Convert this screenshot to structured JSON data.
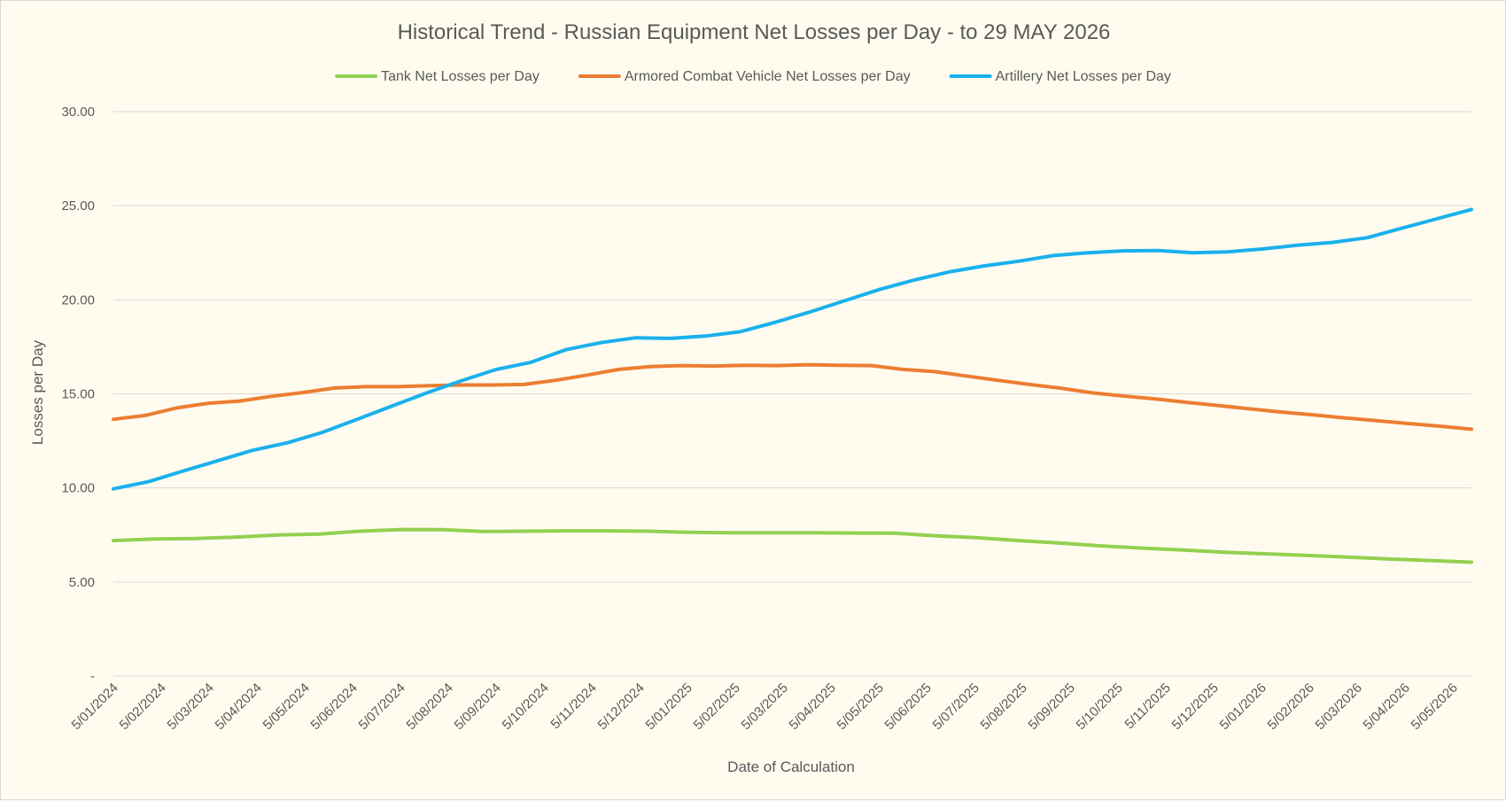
{
  "chart_data": {
    "type": "line",
    "title": "Historical Trend - Russian Equipment Net Losses per Day - to 29 MAY 2026",
    "xlabel": "Date of Calculation",
    "ylabel": "Losses per Day",
    "ylim": [
      0,
      30
    ],
    "y_ticks": [
      "-",
      "5.00",
      "10.00",
      "15.00",
      "20.00",
      "25.00",
      "30.00"
    ],
    "grid": true,
    "legend_position": "top",
    "x_tick_labels": [
      "5/01/2024",
      "5/02/2024",
      "5/03/2024",
      "5/04/2024",
      "5/05/2024",
      "5/06/2024",
      "5/07/2024",
      "5/08/2024",
      "5/09/2024",
      "5/10/2024",
      "5/11/2024",
      "5/12/2024",
      "5/01/2025",
      "5/02/2025",
      "5/03/2025",
      "5/04/2025",
      "5/05/2025",
      "5/06/2025",
      "5/07/2025",
      "5/08/2025",
      "5/09/2025",
      "5/10/2025",
      "5/11/2025",
      "5/12/2025",
      "5/01/2026",
      "5/02/2026",
      "5/03/2026",
      "5/04/2026",
      "5/05/2026"
    ],
    "x_end": "29/05/2026",
    "series": [
      {
        "name": "Tank Net Losses per Day",
        "color": "#92d050",
        "values": [
          7.2,
          7.29,
          7.31,
          7.39,
          7.5,
          7.55,
          7.7,
          7.79,
          7.78,
          7.68,
          7.7,
          7.72,
          7.72,
          7.7,
          7.64,
          7.62,
          7.62,
          7.62,
          7.6,
          7.59,
          7.45,
          7.35,
          7.2,
          7.07,
          6.92,
          6.8,
          6.7,
          6.58,
          6.5,
          6.41,
          6.32,
          6.22,
          6.14,
          6.05
        ]
      },
      {
        "name": "Armored Combat Vehicle Net Losses per Day",
        "color": "#ed7d31",
        "values": [
          13.65,
          13.85,
          14.25,
          14.5,
          14.62,
          14.87,
          15.07,
          15.31,
          15.38,
          15.38,
          15.44,
          15.47,
          15.47,
          15.5,
          15.72,
          16.0,
          16.3,
          16.45,
          16.5,
          16.48,
          16.52,
          16.5,
          16.55,
          16.52,
          16.5,
          16.3,
          16.18,
          15.95,
          15.72,
          15.5,
          15.3,
          15.05,
          14.88,
          14.73,
          14.55,
          14.38,
          14.2,
          14.03,
          13.88,
          13.72,
          13.58,
          13.42,
          13.28,
          13.12
        ]
      },
      {
        "name": "Artillery Net Losses per Day",
        "color": "#1ab1ec",
        "values": [
          9.95,
          10.33,
          10.9,
          11.45,
          12.0,
          12.4,
          12.95,
          13.65,
          14.35,
          15.05,
          15.7,
          16.3,
          16.68,
          17.35,
          17.72,
          17.98,
          17.95,
          18.07,
          18.3,
          18.8,
          19.35,
          19.95,
          20.55,
          21.05,
          21.48,
          21.8,
          22.05,
          22.35,
          22.5,
          22.6,
          22.62,
          22.5,
          22.55,
          22.7,
          22.9,
          23.05,
          23.3,
          23.8,
          24.3,
          24.8
        ]
      }
    ]
  }
}
